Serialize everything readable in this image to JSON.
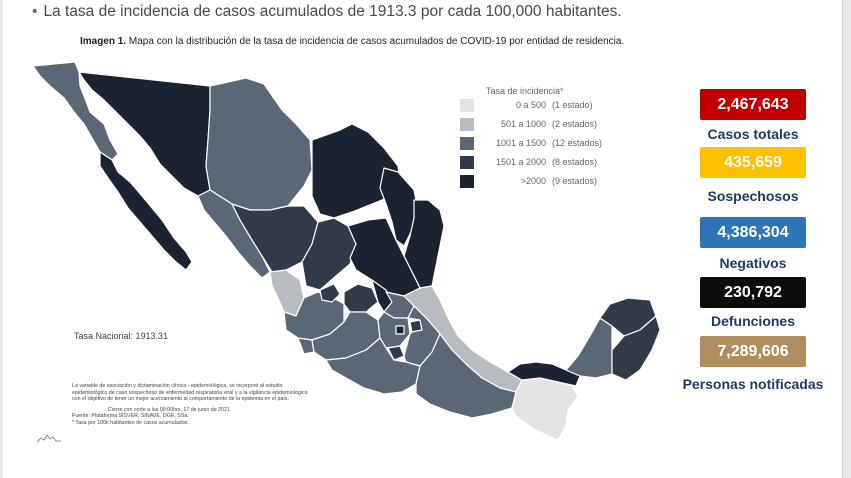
{
  "header": {
    "bullet": "•",
    "text": "La tasa de incidencia de casos acumulados de 1913.3 por cada 100,000 habitantes."
  },
  "caption": {
    "label": "Imagen 1.",
    "text": " Mapa con la distribución de la tasa de incidencia de casos acumulados de COVID-19 por entidad de residencia."
  },
  "legend": {
    "title": "Tasa de incidencia*",
    "items": [
      {
        "range": "0 a   500",
        "count": "(1 estado)",
        "color": "#e3e3e3"
      },
      {
        "range": "501 a  1000",
        "count": "(2 estados)",
        "color": "#b8bcc2"
      },
      {
        "range": "1001 a  1500",
        "count": "(12 estados)",
        "color": "#5b6774"
      },
      {
        "range": "1501 a  2000",
        "count": "(8 estados)",
        "color": "#313b48"
      },
      {
        "range": ">2000",
        "count": "(9 estados)",
        "color": "#1b2330"
      }
    ]
  },
  "stats": [
    {
      "value": "2,467,643",
      "label": "Casos totales",
      "color": "#c00000",
      "text_color": "#ffffff",
      "label_color": "#1f3a5f"
    },
    {
      "value": "435,659",
      "label": "Sospechosos",
      "color": "#ffc000",
      "text_color": "#ffffff",
      "label_color": "#1f3a5f"
    },
    {
      "value": "4,386,304",
      "label": "Negativos",
      "color": "#2e75b6",
      "text_color": "#ffffff",
      "label_color": "#1f3a5f"
    },
    {
      "value": "230,792",
      "label": "Defunciones",
      "color": "#0d0d0d",
      "text_color": "#ffffff",
      "label_color": "#1f3a5f"
    },
    {
      "value": "7,289,606",
      "label": "Personas notificadas",
      "color": "#b08d5e",
      "text_color": "#ffffff",
      "label_color": "#1f3a5f"
    }
  ],
  "tasa_nacional": "Tasa Nacional: 1913.31",
  "footnote": {
    "lines": [
      "La variable de asociación y dictaminación clínica - epidemiológica, se incorporó al estudio",
      "epidemiológico de caso sospechoso de enfermedad respiratoria viral y a la vigilancia epidemiológica",
      "con el objetivo de tener un mejor acercamiento al comportamiento de la epidemia en el país."
    ],
    "cutoff": "Cierre con corte a las 09:00hrs, 17 de junio de 2021",
    "source": "Fuente: Plataforma SISVER, SINAVE, DGE, SSa.",
    "note": "* Tasa por 100k habitantes de casos acumulados."
  },
  "map": {
    "colors": {
      "lowest": "#e3e3e3",
      "low": "#b8bcc2",
      "mid": "#5b6774",
      "high": "#313b48",
      "highest": "#1b2330",
      "border": "#ffffff"
    },
    "states": [
      {
        "name": "baja-california",
        "level": "mid"
      },
      {
        "name": "baja-california-sur",
        "level": "highest"
      },
      {
        "name": "sonora",
        "level": "highest"
      },
      {
        "name": "chihuahua",
        "level": "mid"
      },
      {
        "name": "coahuila",
        "level": "highest"
      },
      {
        "name": "nuevo-leon",
        "level": "highest"
      },
      {
        "name": "tamaulipas",
        "level": "highest"
      },
      {
        "name": "sinaloa",
        "level": "mid"
      },
      {
        "name": "durango",
        "level": "high"
      },
      {
        "name": "zacatecas",
        "level": "high"
      },
      {
        "name": "san-luis-potosi",
        "level": "highest"
      },
      {
        "name": "nayarit",
        "level": "low"
      },
      {
        "name": "jalisco",
        "level": "mid"
      },
      {
        "name": "aguascalientes",
        "level": "high"
      },
      {
        "name": "guanajuato",
        "level": "high"
      },
      {
        "name": "queretaro",
        "level": "highest"
      },
      {
        "name": "hidalgo",
        "level": "mid"
      },
      {
        "name": "veracruz",
        "level": "low"
      },
      {
        "name": "colima",
        "level": "mid"
      },
      {
        "name": "michoacan",
        "level": "mid"
      },
      {
        "name": "estado-de-mexico",
        "level": "mid"
      },
      {
        "name": "cdmx",
        "level": "highest"
      },
      {
        "name": "morelos",
        "level": "high"
      },
      {
        "name": "tlaxcala",
        "level": "high"
      },
      {
        "name": "puebla",
        "level": "mid"
      },
      {
        "name": "guerrero",
        "level": "mid"
      },
      {
        "name": "oaxaca",
        "level": "mid"
      },
      {
        "name": "chiapas",
        "level": "lowest"
      },
      {
        "name": "tabasco",
        "level": "highest"
      },
      {
        "name": "campeche",
        "level": "mid"
      },
      {
        "name": "yucatan",
        "level": "high"
      },
      {
        "name": "quintana-roo",
        "level": "high"
      }
    ]
  }
}
